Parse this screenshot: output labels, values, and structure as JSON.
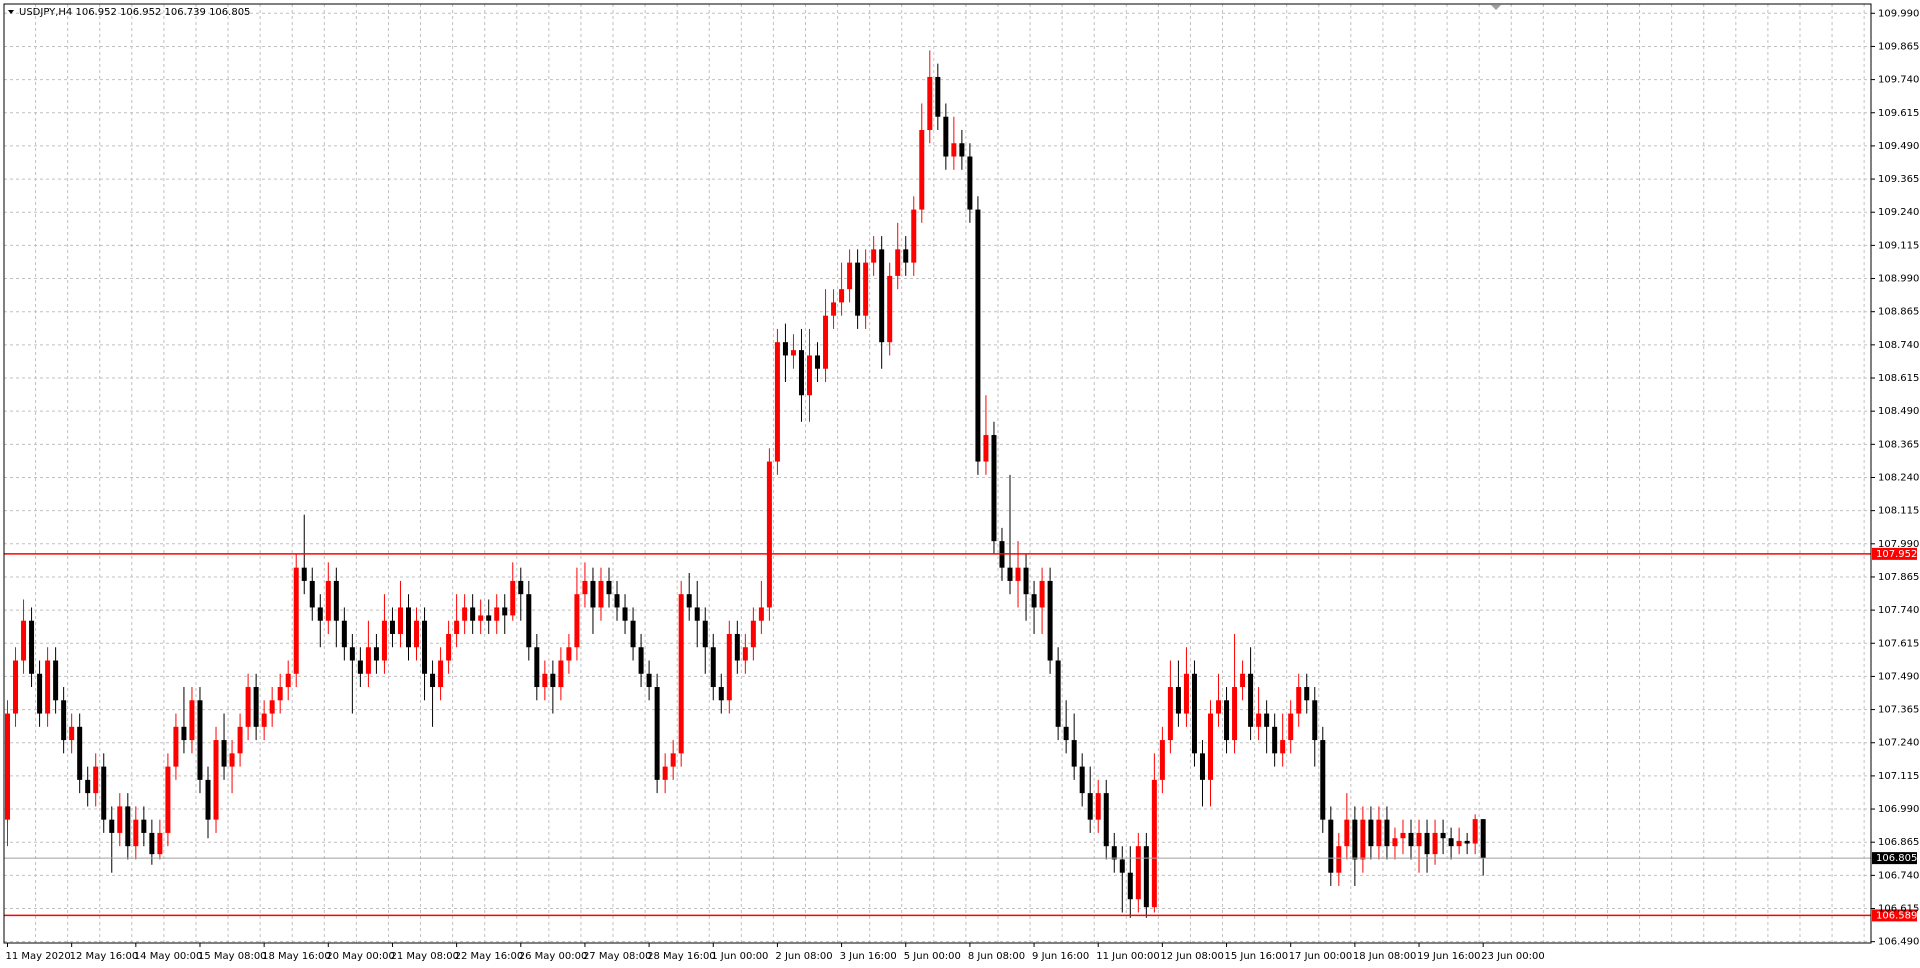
{
  "chart_data": {
    "type": "candlestick",
    "title": "USDJPY,H4 106.952 106.952 106.739 106.805",
    "up_color": "#ff0000",
    "down_color": "#000000",
    "grid": true,
    "ylim": [
      106.485,
      110.025
    ],
    "yticks": [
      {
        "value": 106.49,
        "label": "106.490"
      },
      {
        "value": 106.615,
        "label": "106.615"
      },
      {
        "value": 106.74,
        "label": "106.740"
      },
      {
        "value": 106.865,
        "label": "106.865"
      },
      {
        "value": 106.99,
        "label": "106.990"
      },
      {
        "value": 107.115,
        "label": "107.115"
      },
      {
        "value": 107.24,
        "label": "107.240"
      },
      {
        "value": 107.365,
        "label": "107.365"
      },
      {
        "value": 107.49,
        "label": "107.490"
      },
      {
        "value": 107.615,
        "label": "107.615"
      },
      {
        "value": 107.74,
        "label": "107.740"
      },
      {
        "value": 107.865,
        "label": "107.865"
      },
      {
        "value": 107.99,
        "label": "107.990"
      },
      {
        "value": 108.115,
        "label": "108.115"
      },
      {
        "value": 108.24,
        "label": "108.240"
      },
      {
        "value": 108.365,
        "label": "108.365"
      },
      {
        "value": 108.49,
        "label": "108.490"
      },
      {
        "value": 108.615,
        "label": "108.615"
      },
      {
        "value": 108.74,
        "label": "108.740"
      },
      {
        "value": 108.865,
        "label": "108.865"
      },
      {
        "value": 108.99,
        "label": "108.990"
      },
      {
        "value": 109.115,
        "label": "109.115"
      },
      {
        "value": 109.24,
        "label": "109.240"
      },
      {
        "value": 109.365,
        "label": "109.365"
      },
      {
        "value": 109.49,
        "label": "109.490"
      },
      {
        "value": 109.615,
        "label": "109.615"
      },
      {
        "value": 109.74,
        "label": "109.740"
      },
      {
        "value": 109.865,
        "label": "109.865"
      },
      {
        "value": 109.99,
        "label": "109.990"
      }
    ],
    "hlines": [
      {
        "value": 107.952,
        "color": "#ff0000"
      },
      {
        "value": 106.589,
        "color": "#ff0000"
      }
    ],
    "current_price": 106.805,
    "categories": [
      "11 May 2020",
      null,
      null,
      null,
      null,
      null,
      null,
      null,
      "12 May 16:00",
      null,
      null,
      null,
      null,
      null,
      null,
      null,
      "14 May 00:00",
      null,
      null,
      null,
      null,
      null,
      null,
      null,
      "15 May 08:00",
      null,
      null,
      null,
      null,
      null,
      null,
      null,
      "18 May 16:00",
      null,
      null,
      null,
      null,
      null,
      null,
      null,
      "20 May 00:00",
      null,
      null,
      null,
      null,
      null,
      null,
      null,
      "21 May 08:00",
      null,
      null,
      null,
      null,
      null,
      null,
      null,
      "22 May 16:00",
      null,
      null,
      null,
      null,
      null,
      null,
      null,
      "26 May 00:00",
      null,
      null,
      null,
      null,
      null,
      null,
      null,
      "27 May 08:00",
      null,
      null,
      null,
      null,
      null,
      null,
      null,
      "28 May 16:00",
      null,
      null,
      null,
      null,
      null,
      null,
      null,
      "1 Jun 00:00",
      null,
      null,
      null,
      null,
      null,
      null,
      null,
      "2 Jun 08:00",
      null,
      null,
      null,
      null,
      null,
      null,
      null,
      "3 Jun 16:00",
      null,
      null,
      null,
      null,
      null,
      null,
      null,
      "5 Jun 00:00",
      null,
      null,
      null,
      null,
      null,
      null,
      null,
      "8 Jun 08:00",
      null,
      null,
      null,
      null,
      null,
      null,
      null,
      "9 Jun 16:00",
      null,
      null,
      null,
      null,
      null,
      null,
      null,
      "11 Jun 00:00",
      null,
      null,
      null,
      null,
      null,
      null,
      null,
      "12 Jun 08:00",
      null,
      null,
      null,
      null,
      null,
      null,
      null,
      "15 Jun 16:00",
      null,
      null,
      null,
      null,
      null,
      null,
      null,
      "17 Jun 00:00",
      null,
      null,
      null,
      null,
      null,
      null,
      null,
      "18 Jun 08:00",
      null,
      null,
      null,
      null,
      null,
      null,
      null,
      "19 Jun 16:00",
      null,
      null,
      null,
      null,
      null,
      null,
      null,
      "23 Jun 00:00"
    ],
    "ohlc": [
      [
        106.95,
        107.4,
        106.85,
        107.35
      ],
      [
        107.35,
        107.6,
        107.3,
        107.55
      ],
      [
        107.55,
        107.78,
        107.5,
        107.7
      ],
      [
        107.7,
        107.75,
        107.45,
        107.5
      ],
      [
        107.5,
        107.55,
        107.3,
        107.35
      ],
      [
        107.35,
        107.6,
        107.3,
        107.55
      ],
      [
        107.55,
        107.6,
        107.35,
        107.4
      ],
      [
        107.4,
        107.45,
        107.2,
        107.25
      ],
      [
        107.25,
        107.35,
        107.2,
        107.3
      ],
      [
        107.3,
        107.35,
        107.05,
        107.1
      ],
      [
        107.1,
        107.15,
        107.0,
        107.05
      ],
      [
        107.05,
        107.2,
        107.0,
        107.15
      ],
      [
        107.15,
        107.2,
        106.9,
        106.95
      ],
      [
        106.95,
        107.0,
        106.75,
        106.9
      ],
      [
        106.9,
        107.05,
        106.85,
        107.0
      ],
      [
        107.0,
        107.05,
        106.8,
        106.85
      ],
      [
        106.85,
        107.0,
        106.8,
        106.95
      ],
      [
        106.95,
        107.0,
        106.85,
        106.9
      ],
      [
        106.9,
        106.95,
        106.78,
        106.82
      ],
      [
        106.82,
        106.95,
        106.8,
        106.9
      ],
      [
        106.9,
        107.2,
        106.85,
        107.15
      ],
      [
        107.15,
        107.35,
        107.1,
        107.3
      ],
      [
        107.3,
        107.45,
        107.2,
        107.25
      ],
      [
        107.25,
        107.45,
        107.2,
        107.4
      ],
      [
        107.4,
        107.45,
        107.05,
        107.1
      ],
      [
        107.1,
        107.15,
        106.88,
        106.95
      ],
      [
        106.95,
        107.3,
        106.9,
        107.25
      ],
      [
        107.25,
        107.35,
        107.1,
        107.15
      ],
      [
        107.15,
        107.25,
        107.05,
        107.2
      ],
      [
        107.2,
        107.35,
        107.15,
        107.3
      ],
      [
        107.3,
        107.5,
        107.25,
        107.45
      ],
      [
        107.45,
        107.5,
        107.25,
        107.3
      ],
      [
        107.3,
        107.4,
        107.25,
        107.35
      ],
      [
        107.35,
        107.45,
        107.3,
        107.4
      ],
      [
        107.4,
        107.5,
        107.35,
        107.45
      ],
      [
        107.45,
        107.55,
        107.4,
        107.5
      ],
      [
        107.5,
        107.95,
        107.45,
        107.9
      ],
      [
        107.9,
        108.1,
        107.8,
        107.85
      ],
      [
        107.85,
        107.9,
        107.7,
        107.75
      ],
      [
        107.75,
        107.8,
        107.6,
        107.7
      ],
      [
        107.7,
        107.92,
        107.65,
        107.85
      ],
      [
        107.85,
        107.9,
        107.6,
        107.7
      ],
      [
        107.7,
        107.75,
        107.55,
        107.6
      ],
      [
        107.6,
        107.65,
        107.35,
        107.55
      ],
      [
        107.55,
        107.6,
        107.45,
        107.5
      ],
      [
        107.5,
        107.7,
        107.45,
        107.6
      ],
      [
        107.6,
        107.65,
        107.5,
        107.55
      ],
      [
        107.55,
        107.8,
        107.5,
        107.7
      ],
      [
        107.7,
        107.75,
        107.6,
        107.65
      ],
      [
        107.65,
        107.85,
        107.6,
        107.75
      ],
      [
        107.75,
        107.8,
        107.55,
        107.6
      ],
      [
        107.6,
        107.75,
        107.55,
        107.7
      ],
      [
        107.7,
        107.75,
        107.4,
        107.5
      ],
      [
        107.5,
        107.55,
        107.3,
        107.45
      ],
      [
        107.45,
        107.6,
        107.4,
        107.55
      ],
      [
        107.55,
        107.7,
        107.5,
        107.65
      ],
      [
        107.65,
        107.8,
        107.6,
        107.7
      ],
      [
        107.7,
        107.8,
        107.65,
        107.75
      ],
      [
        107.75,
        107.8,
        107.65,
        107.7
      ],
      [
        107.7,
        107.78,
        107.65,
        107.72
      ],
      [
        107.72,
        107.78,
        107.65,
        107.7
      ],
      [
        107.7,
        107.8,
        107.65,
        107.75
      ],
      [
        107.75,
        107.8,
        107.65,
        107.72
      ],
      [
        107.72,
        107.92,
        107.7,
        107.85
      ],
      [
        107.85,
        107.9,
        107.7,
        107.8
      ],
      [
        107.8,
        107.85,
        107.55,
        107.6
      ],
      [
        107.6,
        107.65,
        107.4,
        107.45
      ],
      [
        107.45,
        107.55,
        107.4,
        107.5
      ],
      [
        107.5,
        107.55,
        107.35,
        107.45
      ],
      [
        107.45,
        107.6,
        107.4,
        107.55
      ],
      [
        107.55,
        107.65,
        107.5,
        107.6
      ],
      [
        107.6,
        107.9,
        107.55,
        107.8
      ],
      [
        107.8,
        107.92,
        107.75,
        107.85
      ],
      [
        107.85,
        107.9,
        107.65,
        107.75
      ],
      [
        107.75,
        107.9,
        107.7,
        107.85
      ],
      [
        107.85,
        107.9,
        107.75,
        107.8
      ],
      [
        107.8,
        107.85,
        107.7,
        107.75
      ],
      [
        107.75,
        107.8,
        107.65,
        107.7
      ],
      [
        107.7,
        107.75,
        107.55,
        107.6
      ],
      [
        107.6,
        107.65,
        107.45,
        107.5
      ],
      [
        107.5,
        107.55,
        107.4,
        107.45
      ],
      [
        107.45,
        107.5,
        107.05,
        107.1
      ],
      [
        107.1,
        107.2,
        107.05,
        107.15
      ],
      [
        107.15,
        107.25,
        107.1,
        107.2
      ],
      [
        107.2,
        107.85,
        107.15,
        107.8
      ],
      [
        107.8,
        107.88,
        107.7,
        107.75
      ],
      [
        107.75,
        107.85,
        107.6,
        107.7
      ],
      [
        107.7,
        107.75,
        107.5,
        107.6
      ],
      [
        107.6,
        107.65,
        107.4,
        107.45
      ],
      [
        107.45,
        107.5,
        107.35,
        107.4
      ],
      [
        107.4,
        107.7,
        107.35,
        107.65
      ],
      [
        107.65,
        107.7,
        107.5,
        107.55
      ],
      [
        107.55,
        107.65,
        107.5,
        107.6
      ],
      [
        107.6,
        107.75,
        107.55,
        107.7
      ],
      [
        107.7,
        107.85,
        107.65,
        107.75
      ],
      [
        107.75,
        108.35,
        107.7,
        108.3
      ],
      [
        108.3,
        108.8,
        108.25,
        108.75
      ],
      [
        108.75,
        108.82,
        108.6,
        108.7
      ],
      [
        108.7,
        108.78,
        108.65,
        108.72
      ],
      [
        108.72,
        108.8,
        108.45,
        108.55
      ],
      [
        108.55,
        108.8,
        108.45,
        108.7
      ],
      [
        108.7,
        108.75,
        108.6,
        108.65
      ],
      [
        108.65,
        108.95,
        108.6,
        108.85
      ],
      [
        108.85,
        108.95,
        108.8,
        108.9
      ],
      [
        108.9,
        109.05,
        108.85,
        108.95
      ],
      [
        108.95,
        109.1,
        108.9,
        109.05
      ],
      [
        109.05,
        109.1,
        108.8,
        108.85
      ],
      [
        108.85,
        109.1,
        108.8,
        109.05
      ],
      [
        109.05,
        109.15,
        109.0,
        109.1
      ],
      [
        109.1,
        109.15,
        108.65,
        108.75
      ],
      [
        108.75,
        109.05,
        108.7,
        109.0
      ],
      [
        109.0,
        109.2,
        108.95,
        109.1
      ],
      [
        109.1,
        109.15,
        109.0,
        109.05
      ],
      [
        109.05,
        109.3,
        109.0,
        109.25
      ],
      [
        109.25,
        109.65,
        109.2,
        109.55
      ],
      [
        109.55,
        109.85,
        109.5,
        109.75
      ],
      [
        109.75,
        109.8,
        109.55,
        109.6
      ],
      [
        109.6,
        109.65,
        109.4,
        109.45
      ],
      [
        109.45,
        109.6,
        109.4,
        109.5
      ],
      [
        109.5,
        109.55,
        109.4,
        109.45
      ],
      [
        109.45,
        109.5,
        109.2,
        109.25
      ],
      [
        109.25,
        109.3,
        108.25,
        108.3
      ],
      [
        108.3,
        108.55,
        108.25,
        108.4
      ],
      [
        108.4,
        108.45,
        107.95,
        108.0
      ],
      [
        108.0,
        108.05,
        107.85,
        107.9
      ],
      [
        107.9,
        108.25,
        107.8,
        107.85
      ],
      [
        107.85,
        108.0,
        107.75,
        107.9
      ],
      [
        107.9,
        107.95,
        107.7,
        107.8
      ],
      [
        107.8,
        107.85,
        107.65,
        107.75
      ],
      [
        107.75,
        107.9,
        107.65,
        107.85
      ],
      [
        107.85,
        107.9,
        107.5,
        107.55
      ],
      [
        107.55,
        107.6,
        107.25,
        107.3
      ],
      [
        107.3,
        107.4,
        107.2,
        107.25
      ],
      [
        107.25,
        107.35,
        107.1,
        107.15
      ],
      [
        107.15,
        107.2,
        107.0,
        107.05
      ],
      [
        107.05,
        107.15,
        106.9,
        106.95
      ],
      [
        106.95,
        107.1,
        106.9,
        107.05
      ],
      [
        107.05,
        107.1,
        106.8,
        106.85
      ],
      [
        106.85,
        106.9,
        106.75,
        106.8
      ],
      [
        106.8,
        106.85,
        106.6,
        106.75
      ],
      [
        106.75,
        106.85,
        106.58,
        106.65
      ],
      [
        106.65,
        106.9,
        106.6,
        106.85
      ],
      [
        106.85,
        106.9,
        106.58,
        106.62
      ],
      [
        106.62,
        107.2,
        106.6,
        107.1
      ],
      [
        107.1,
        107.3,
        107.05,
        107.25
      ],
      [
        107.25,
        107.55,
        107.2,
        107.45
      ],
      [
        107.45,
        107.55,
        107.3,
        107.35
      ],
      [
        107.35,
        107.6,
        107.3,
        107.5
      ],
      [
        107.5,
        107.55,
        107.15,
        107.2
      ],
      [
        107.2,
        107.25,
        107.0,
        107.1
      ],
      [
        107.1,
        107.4,
        107.0,
        107.35
      ],
      [
        107.35,
        107.5,
        107.3,
        107.4
      ],
      [
        107.4,
        107.45,
        107.2,
        107.25
      ],
      [
        107.25,
        107.65,
        107.2,
        107.45
      ],
      [
        107.45,
        107.55,
        107.4,
        107.5
      ],
      [
        107.5,
        107.6,
        107.25,
        107.3
      ],
      [
        107.3,
        107.45,
        107.25,
        107.35
      ],
      [
        107.35,
        107.4,
        107.2,
        107.3
      ],
      [
        107.3,
        107.35,
        107.15,
        107.2
      ],
      [
        107.2,
        107.35,
        107.15,
        107.25
      ],
      [
        107.25,
        107.4,
        107.2,
        107.35
      ],
      [
        107.35,
        107.5,
        107.3,
        107.45
      ],
      [
        107.45,
        107.5,
        107.35,
        107.4
      ],
      [
        107.4,
        107.45,
        107.15,
        107.25
      ],
      [
        107.25,
        107.3,
        106.9,
        106.95
      ],
      [
        106.95,
        107.0,
        106.7,
        106.75
      ],
      [
        106.75,
        106.9,
        106.7,
        106.85
      ],
      [
        106.85,
        107.05,
        106.8,
        106.95
      ],
      [
        106.95,
        107.0,
        106.7,
        106.8
      ],
      [
        106.8,
        107.0,
        106.75,
        106.95
      ],
      [
        106.95,
        107.0,
        106.8,
        106.85
      ],
      [
        106.85,
        107.0,
        106.8,
        106.95
      ],
      [
        106.95,
        107.0,
        106.8,
        106.85
      ],
      [
        106.85,
        106.92,
        106.8,
        106.88
      ],
      [
        106.88,
        106.95,
        106.82,
        106.9
      ],
      [
        106.9,
        106.95,
        106.8,
        106.85
      ],
      [
        106.85,
        106.95,
        106.75,
        106.9
      ],
      [
        106.9,
        106.95,
        106.75,
        106.82
      ],
      [
        106.82,
        106.95,
        106.78,
        106.9
      ],
      [
        106.9,
        106.95,
        106.82,
        106.88
      ],
      [
        106.88,
        106.92,
        106.8,
        106.85
      ],
      [
        106.85,
        106.92,
        106.82,
        106.87
      ],
      [
        106.87,
        106.9,
        106.82,
        106.86
      ],
      [
        106.86,
        106.97,
        106.82,
        106.952
      ],
      [
        106.952,
        106.952,
        106.739,
        106.805
      ]
    ]
  }
}
